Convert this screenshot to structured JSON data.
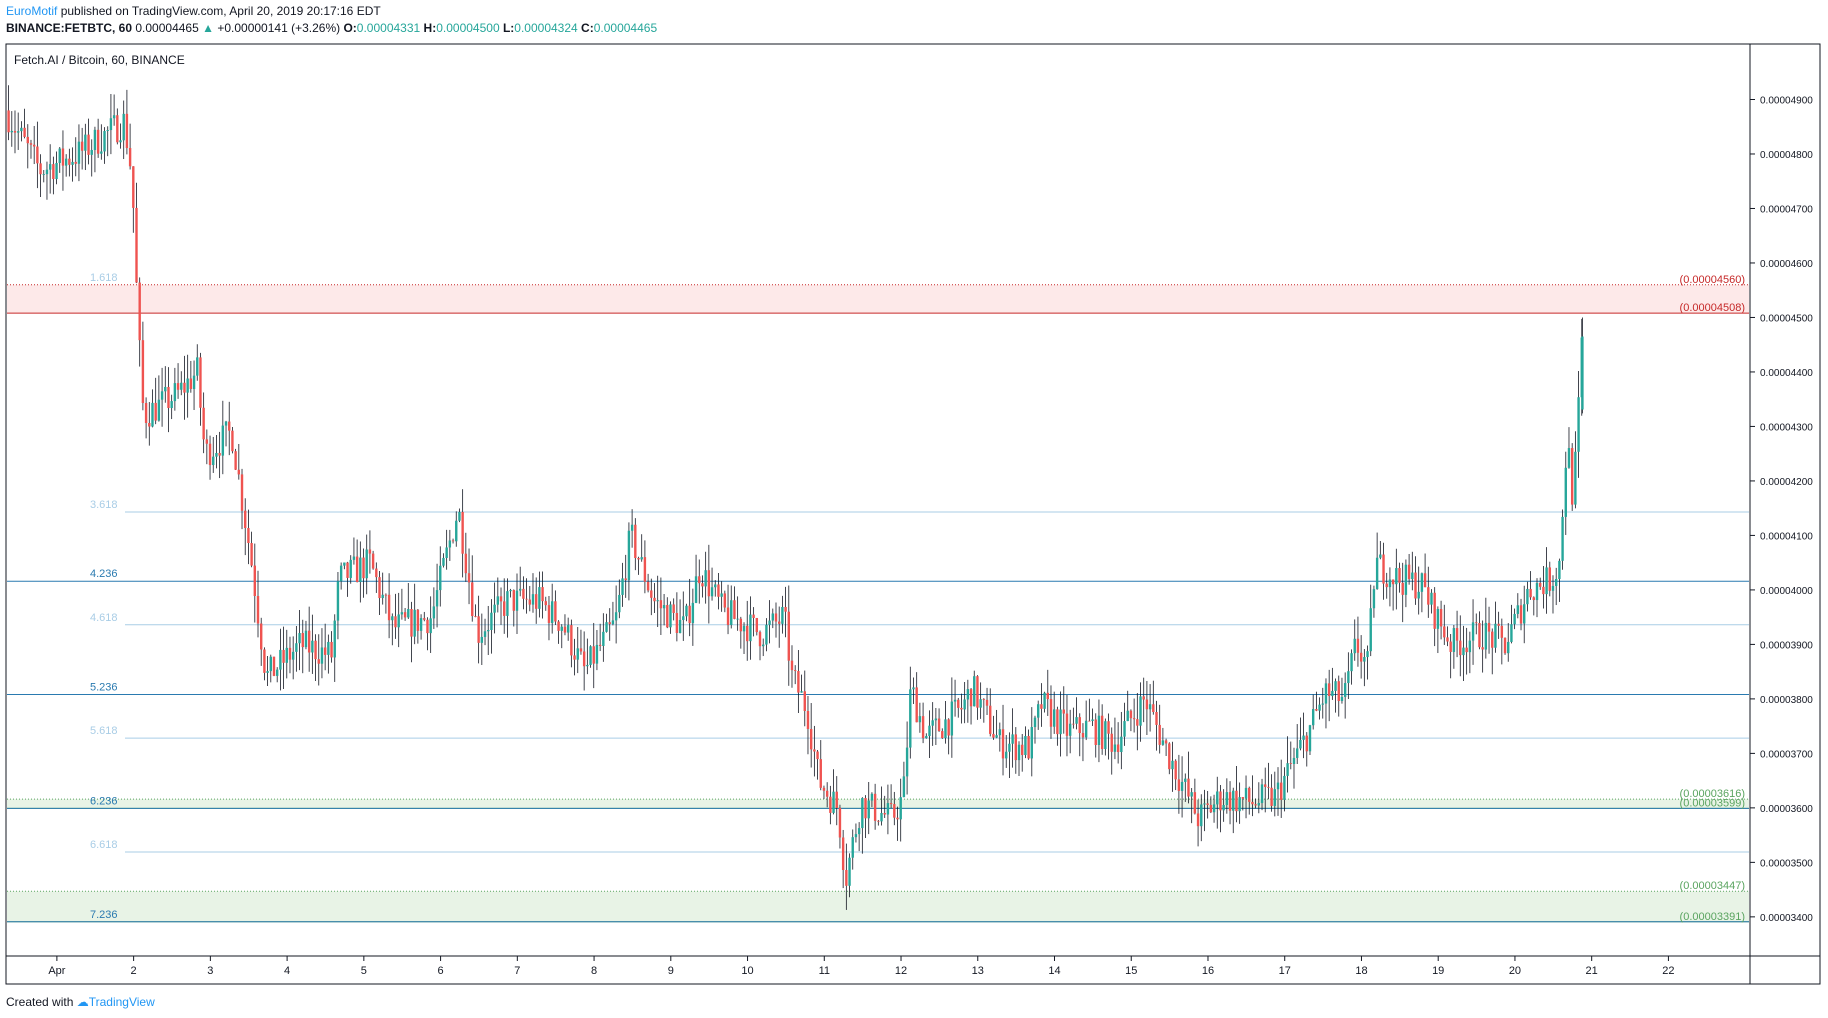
{
  "header": {
    "author": "EuroMotif",
    "published": "published on TradingView.com, April 20, 2019 20:17:16 EDT",
    "symbol": "BINANCE:FETBTC, 60",
    "last": "0.00004465",
    "change_arrow": "▲",
    "change": "+0.00000141 (+3.26%)",
    "o_label": "O:",
    "o": "0.00004331",
    "h_label": "H:",
    "h": "0.00004500",
    "l_label": "L:",
    "l": "0.00004324",
    "c_label": "C:",
    "c": "0.00004465"
  },
  "chart_title": "Fetch.AI / Bitcoin, 60, BINANCE",
  "footer": {
    "created": "Created with",
    "brand": "TradingView"
  },
  "colors": {
    "up": "#26a69a",
    "down": "#ef5350",
    "wick": "#131722",
    "fib_dark": "#2a7ab0",
    "fib_light": "#a9cde6",
    "red_zone": "#fde9e9",
    "red_line": "#c62828",
    "green_zone": "#e8f3e6",
    "green_line": "#5aa460"
  },
  "chart_data": {
    "type": "candlestick",
    "title": "Fetch.AI / Bitcoin, 60, BINANCE",
    "ylim": [
      3.33e-05,
      5e-05
    ],
    "y_ticks": [
      "0.00003400",
      "0.00003500",
      "0.00003600",
      "0.00003700",
      "0.00003800",
      "0.00003900",
      "0.00004000",
      "0.00004100",
      "0.00004200",
      "0.00004300",
      "0.00004400",
      "0.00004500",
      "0.00004600",
      "0.00004700",
      "0.00004800",
      "0.00004900"
    ],
    "x_ticks": [
      {
        "label": "Apr",
        "day": 1
      },
      {
        "label": "2",
        "day": 2
      },
      {
        "label": "3",
        "day": 3
      },
      {
        "label": "4",
        "day": 4
      },
      {
        "label": "5",
        "day": 5
      },
      {
        "label": "6",
        "day": 6
      },
      {
        "label": "7",
        "day": 7
      },
      {
        "label": "8",
        "day": 8
      },
      {
        "label": "9",
        "day": 9
      },
      {
        "label": "10",
        "day": 10
      },
      {
        "label": "11",
        "day": 11
      },
      {
        "label": "12",
        "day": 12
      },
      {
        "label": "13",
        "day": 13
      },
      {
        "label": "14",
        "day": 14
      },
      {
        "label": "15",
        "day": 15
      },
      {
        "label": "16",
        "day": 16
      },
      {
        "label": "17",
        "day": 17
      },
      {
        "label": "18",
        "day": 18
      },
      {
        "label": "19",
        "day": 19
      },
      {
        "label": "20",
        "day": 20
      },
      {
        "label": "21",
        "day": 21
      },
      {
        "label": "22",
        "day": 22
      }
    ],
    "xlim_days": [
      0.35,
      23.05
    ],
    "fib_levels": [
      {
        "label": "1.618",
        "value": 4.56e-05,
        "style": "light"
      },
      {
        "label": "3.618",
        "value": 4.143e-05,
        "style": "light"
      },
      {
        "label": "4.236",
        "value": 4.016e-05,
        "style": "dark"
      },
      {
        "label": "4.618",
        "value": 3.936e-05,
        "style": "light"
      },
      {
        "label": "5.236",
        "value": 3.808e-05,
        "style": "dark"
      },
      {
        "label": "5.618",
        "value": 3.728e-05,
        "style": "light"
      },
      {
        "label": "6.236",
        "value": 3.599e-05,
        "style": "dark"
      },
      {
        "label": "6.618",
        "value": 3.519e-05,
        "style": "light"
      },
      {
        "label": "7.236",
        "value": 3.391e-05,
        "style": "dark"
      }
    ],
    "zones": [
      {
        "color": "red",
        "top": 4.56e-05,
        "bottom": 4.508e-05,
        "labels": [
          "(0.00004560)",
          "(0.00004508)"
        ]
      },
      {
        "color": "green",
        "top": 3.616e-05,
        "bottom": 3.599e-05,
        "labels": [
          "(0.00003616)",
          "(0.00003599)"
        ]
      },
      {
        "color": "green",
        "top": 3.447e-05,
        "bottom": 3.391e-05,
        "labels": [
          "(0.00003447)",
          "(0.00003391)"
        ]
      }
    ],
    "path_keypoints": [
      [
        0.35,
        4.88e-05
      ],
      [
        0.8,
        4.77e-05
      ],
      [
        1.3,
        4.8e-05
      ],
      [
        1.9,
        4.86e-05
      ],
      [
        2.0,
        4.76e-05
      ],
      [
        2.08,
        4.48e-05
      ],
      [
        2.15,
        4.32e-05
      ],
      [
        2.6,
        4.36e-05
      ],
      [
        2.85,
        4.4e-05
      ],
      [
        2.95,
        4.25e-05
      ],
      [
        3.3,
        4.29e-05
      ],
      [
        3.55,
        4.06e-05
      ],
      [
        3.75,
        3.84e-05
      ],
      [
        4.2,
        3.9e-05
      ],
      [
        4.6,
        3.88e-05
      ],
      [
        4.7,
        4.02e-05
      ],
      [
        5.1,
        4.05e-05
      ],
      [
        5.4,
        3.93e-05
      ],
      [
        5.9,
        3.95e-05
      ],
      [
        6.25,
        4.15e-05
      ],
      [
        6.5,
        3.92e-05
      ],
      [
        6.9,
        3.98e-05
      ],
      [
        7.3,
        3.98e-05
      ],
      [
        7.6,
        3.94e-05
      ],
      [
        7.9,
        3.85e-05
      ],
      [
        8.3,
        3.94e-05
      ],
      [
        8.5,
        4.1e-05
      ],
      [
        8.8,
        3.98e-05
      ],
      [
        9.2,
        3.93e-05
      ],
      [
        9.4,
        4.04e-05
      ],
      [
        9.7,
        3.96e-05
      ],
      [
        10.2,
        3.92e-05
      ],
      [
        10.5,
        3.95e-05
      ],
      [
        10.6,
        3.84e-05
      ],
      [
        10.8,
        3.78e-05
      ],
      [
        10.95,
        3.65e-05
      ],
      [
        11.2,
        3.6e-05
      ],
      [
        11.3,
        3.47e-05
      ],
      [
        11.5,
        3.61e-05
      ],
      [
        11.9,
        3.58e-05
      ],
      [
        12.05,
        3.62e-05
      ],
      [
        12.15,
        3.82e-05
      ],
      [
        12.35,
        3.73e-05
      ],
      [
        12.8,
        3.78e-05
      ],
      [
        12.95,
        3.82e-05
      ],
      [
        13.3,
        3.72e-05
      ],
      [
        13.7,
        3.71e-05
      ],
      [
        13.85,
        3.79e-05
      ],
      [
        14.2,
        3.74e-05
      ],
      [
        14.5,
        3.75e-05
      ],
      [
        14.8,
        3.72e-05
      ],
      [
        15.2,
        3.8e-05
      ],
      [
        15.5,
        3.7e-05
      ],
      [
        15.9,
        3.58e-05
      ],
      [
        16.2,
        3.62e-05
      ],
      [
        16.6,
        3.61e-05
      ],
      [
        16.9,
        3.62e-05
      ],
      [
        17.3,
        3.73e-05
      ],
      [
        17.55,
        3.81e-05
      ],
      [
        17.8,
        3.8e-05
      ],
      [
        17.95,
        3.9e-05
      ],
      [
        18.1,
        3.86e-05
      ],
      [
        18.2,
        4.05e-05
      ],
      [
        18.5,
        4.02e-05
      ],
      [
        18.8,
        4.01e-05
      ],
      [
        19.0,
        3.95e-05
      ],
      [
        19.2,
        3.9e-05
      ],
      [
        19.6,
        3.92e-05
      ],
      [
        19.9,
        3.9e-05
      ],
      [
        20.2,
        4e-05
      ],
      [
        20.5,
        4.02e-05
      ],
      [
        20.6,
        4.05e-05
      ],
      [
        20.7,
        4.28e-05
      ],
      [
        20.78,
        4.16e-05
      ],
      [
        20.85,
        4.331e-05
      ],
      [
        20.9,
        4.465e-05
      ]
    ],
    "last_candle": {
      "o": 4.331e-05,
      "h": 4.5e-05,
      "l": 4.324e-05,
      "c": 4.465e-05
    }
  }
}
